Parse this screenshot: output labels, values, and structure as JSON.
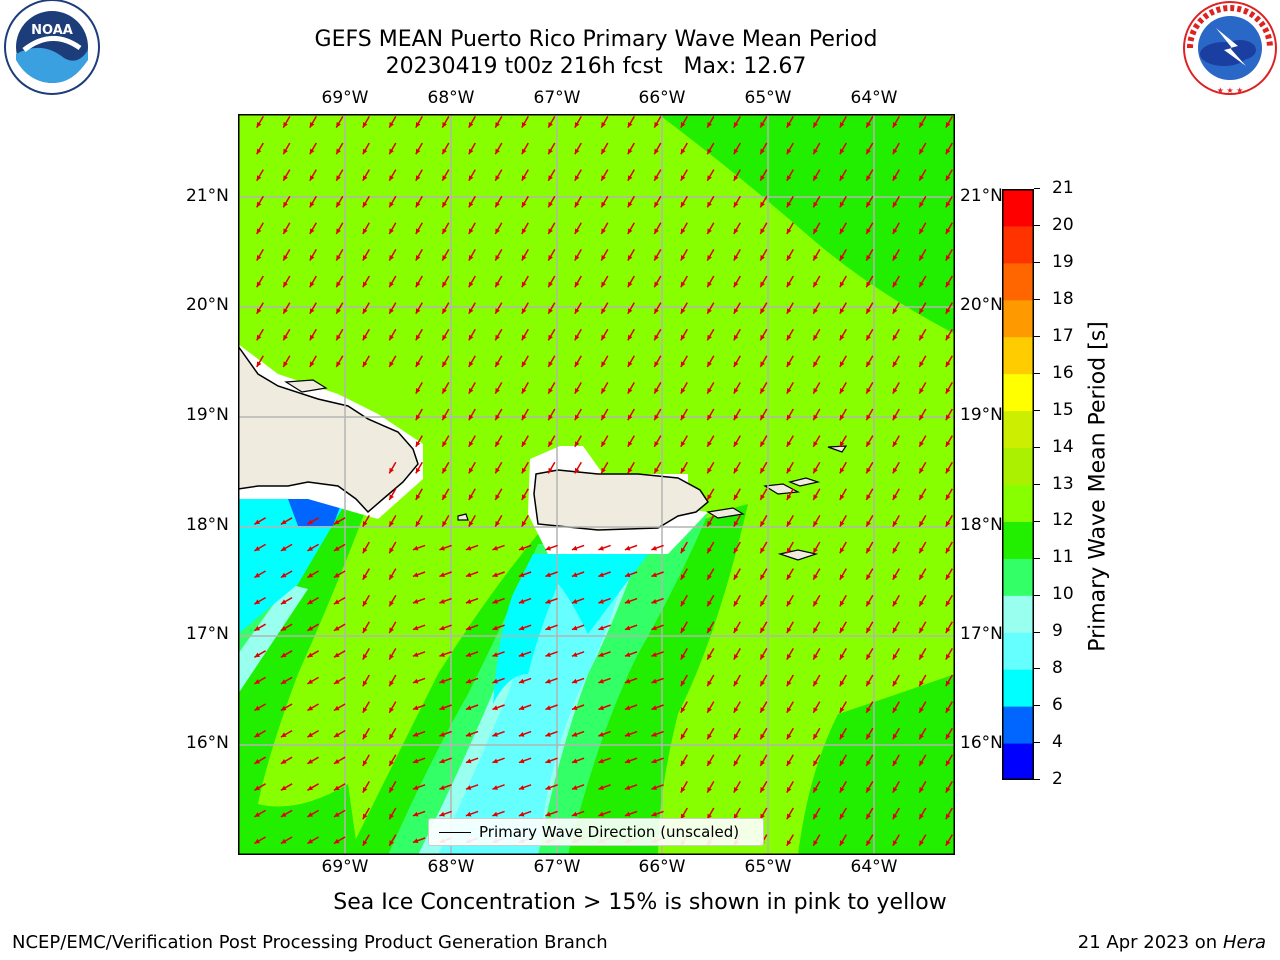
{
  "header": {
    "title_line1": "GEFS MEAN Puerto Rico Primary Wave Mean Period",
    "title_line2": "20230419 t00z 216h fcst   Max: 12.67"
  },
  "logos": {
    "noaa_text": "NOAA",
    "nws_text": "NATIONAL WEATHER SERVICE"
  },
  "map": {
    "lon_labels": [
      "69°W",
      "68°W",
      "67°W",
      "66°W",
      "65°W",
      "64°W"
    ],
    "lat_labels": [
      "21°N",
      "20°N",
      "19°N",
      "18°N",
      "17°N",
      "16°N"
    ],
    "legend_label": "Primary Wave Direction (unscaled)",
    "arrow_color": "#e00000",
    "land_color": "#efecdf",
    "gridlines": true
  },
  "colorbar": {
    "label": "Primary Wave Mean Period [s]",
    "ticks": [
      "2",
      "4",
      "6",
      "8",
      "9",
      "10",
      "11",
      "12",
      "13",
      "14",
      "15",
      "16",
      "17",
      "18",
      "19",
      "20",
      "21"
    ],
    "colors": [
      "#0000ff",
      "#0066ff",
      "#00ffff",
      "#66ffff",
      "#99ffee",
      "#33ff66",
      "#22ee00",
      "#88ff00",
      "#aaf000",
      "#ccee00",
      "#ffff00",
      "#ffcc00",
      "#ff9900",
      "#ff6600",
      "#ff3300",
      "#ff0000"
    ]
  },
  "note": "Sea Ice Concentration > 15% is shown in pink to yellow",
  "footer": {
    "left": "NCEP/EMC/Verification Post Processing Product Generation Branch",
    "right_date": "21 Apr 2023 on ",
    "right_host": "Hera"
  }
}
